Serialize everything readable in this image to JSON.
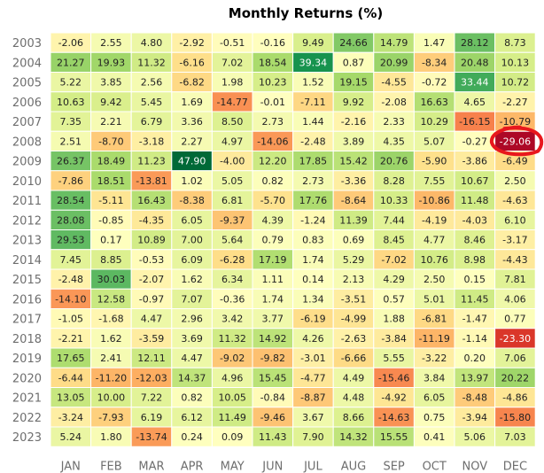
{
  "chart_data": {
    "type": "heatmap",
    "title": "Monthly Returns (%)",
    "xlabel": "",
    "ylabel": "",
    "x": [
      "JAN",
      "FEB",
      "MAR",
      "APR",
      "MAY",
      "JUN",
      "JUL",
      "AUG",
      "SEP",
      "OCT",
      "NOV",
      "DEC"
    ],
    "y": [
      "2003",
      "2004",
      "2005",
      "2006",
      "2007",
      "2008",
      "2009",
      "2010",
      "2011",
      "2012",
      "2013",
      "2014",
      "2015",
      "2016",
      "2017",
      "2018",
      "2019",
      "2020",
      "2021",
      "2022",
      "2023"
    ],
    "values": [
      [
        -2.06,
        2.55,
        4.8,
        -2.92,
        -0.51,
        -0.16,
        9.49,
        24.66,
        14.79,
        1.47,
        28.12,
        8.73
      ],
      [
        21.27,
        19.93,
        11.32,
        -6.16,
        7.02,
        18.54,
        39.34,
        0.87,
        20.99,
        -8.34,
        20.48,
        10.13
      ],
      [
        5.22,
        3.85,
        2.56,
        -6.82,
        1.98,
        10.23,
        1.52,
        19.15,
        -4.55,
        -0.72,
        33.44,
        10.72
      ],
      [
        10.63,
        9.42,
        5.45,
        1.69,
        -14.77,
        -0.01,
        -7.11,
        9.92,
        -2.08,
        16.63,
        4.65,
        -2.27
      ],
      [
        7.35,
        2.21,
        6.79,
        3.36,
        8.5,
        2.73,
        1.44,
        -2.16,
        2.33,
        10.29,
        -16.15,
        -10.79
      ],
      [
        2.51,
        -8.7,
        -3.18,
        2.27,
        4.97,
        -14.06,
        -2.48,
        3.89,
        4.35,
        5.07,
        -0.27,
        -29.06
      ],
      [
        26.37,
        18.49,
        11.23,
        47.9,
        -4.0,
        12.2,
        17.85,
        15.42,
        20.76,
        -5.9,
        -3.86,
        -6.49
      ],
      [
        -7.86,
        18.51,
        -13.81,
        1.02,
        5.05,
        0.82,
        2.73,
        -3.36,
        8.28,
        7.55,
        10.67,
        2.5
      ],
      [
        28.54,
        -5.11,
        16.43,
        -8.38,
        6.81,
        -5.7,
        17.76,
        -8.64,
        10.33,
        -10.86,
        11.48,
        -4.63
      ],
      [
        28.08,
        -0.85,
        -4.35,
        6.05,
        -9.37,
        4.39,
        -1.24,
        11.39,
        7.44,
        -4.19,
        -4.03,
        6.1
      ],
      [
        29.53,
        0.17,
        10.89,
        7.0,
        5.64,
        0.79,
        0.83,
        0.69,
        8.45,
        4.77,
        8.46,
        -3.17
      ],
      [
        7.45,
        8.85,
        -0.53,
        6.09,
        -6.28,
        17.19,
        1.74,
        5.29,
        -7.02,
        10.76,
        8.98,
        -4.43
      ],
      [
        -2.48,
        30.03,
        -2.07,
        1.62,
        6.34,
        1.11,
        0.14,
        2.13,
        4.29,
        2.5,
        0.15,
        7.81
      ],
      [
        -14.1,
        12.58,
        -0.97,
        7.07,
        -0.36,
        1.74,
        1.34,
        -3.51,
        0.57,
        5.01,
        11.45,
        4.06
      ],
      [
        -1.05,
        -1.68,
        4.47,
        2.96,
        3.42,
        3.77,
        -6.19,
        -4.99,
        1.88,
        -6.81,
        -1.47,
        0.77
      ],
      [
        -2.21,
        1.62,
        -3.59,
        3.69,
        11.32,
        14.92,
        4.26,
        -2.63,
        -3.84,
        -11.19,
        -1.14,
        -23.3
      ],
      [
        17.65,
        2.41,
        12.11,
        4.47,
        -9.02,
        -9.82,
        -3.01,
        -6.66,
        5.55,
        -3.22,
        0.2,
        7.06
      ],
      [
        -6.44,
        -11.2,
        -12.03,
        14.37,
        4.96,
        15.45,
        -4.77,
        4.49,
        -15.46,
        3.84,
        13.97,
        20.22
      ],
      [
        13.05,
        10.0,
        7.22,
        0.82,
        10.05,
        -0.84,
        -8.87,
        4.48,
        -4.92,
        6.05,
        -8.48,
        -4.86
      ],
      [
        -3.24,
        -7.93,
        6.19,
        6.12,
        11.49,
        -9.46,
        3.67,
        8.66,
        -14.63,
        0.75,
        -3.94,
        -15.8
      ],
      [
        5.24,
        1.8,
        -13.74,
        0.24,
        0.09,
        11.43,
        7.9,
        14.32,
        15.55,
        0.41,
        5.06,
        7.03
      ]
    ],
    "colormap": "RdYlGn",
    "center": 0,
    "vmin": -30,
    "vmax": 48,
    "grid": false,
    "legend": "none",
    "annotation": {
      "type": "circle",
      "color": "#e8171d",
      "row": "2008",
      "col": "DEC"
    }
  }
}
